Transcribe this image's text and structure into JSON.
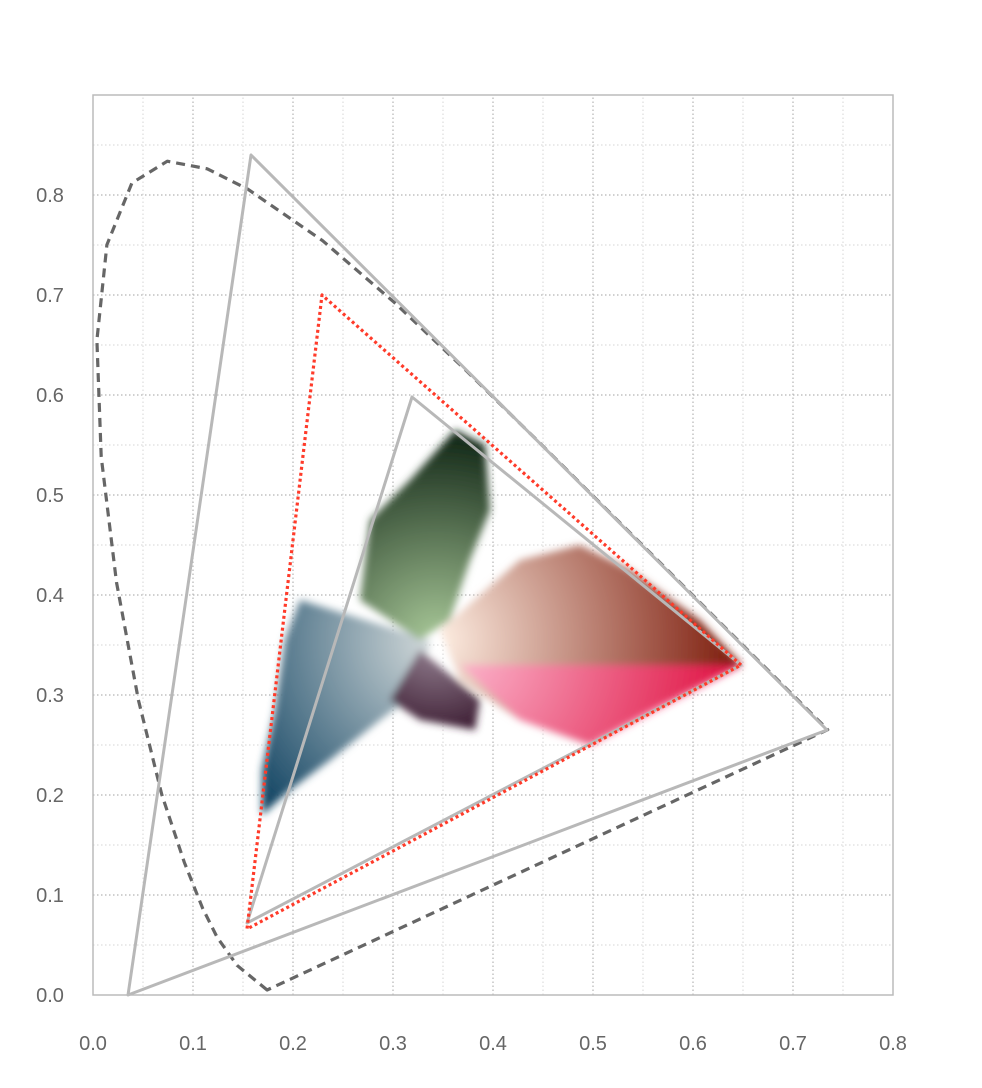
{
  "chart_data": {
    "type": "line",
    "title": "",
    "xlabel": "",
    "ylabel": "",
    "xlim": [
      0.0,
      0.8
    ],
    "ylim": [
      0.0,
      0.9
    ],
    "grid": true,
    "grid_minor_step": 0.05,
    "x_ticks": [
      "0.0",
      "0.1",
      "0.2",
      "0.3",
      "0.4",
      "0.5",
      "0.6",
      "0.7",
      "0.8"
    ],
    "y_ticks": [
      "0.0",
      "0.1",
      "0.2",
      "0.3",
      "0.4",
      "0.5",
      "0.6",
      "0.7",
      "0.8"
    ],
    "colors": {
      "axis": "#bbbbbb",
      "grid_major": "#b5b5b5",
      "grid_minor": "#dddddd",
      "tick_text": "#666666"
    },
    "series": [
      {
        "style": "dashed",
        "color": "#666666",
        "closed": true,
        "points": [
          [
            0.1741,
            0.005
          ],
          [
            0.144,
            0.0297
          ],
          [
            0.1241,
            0.0578
          ],
          [
            0.1096,
            0.0868
          ],
          [
            0.0913,
            0.1327
          ],
          [
            0.0687,
            0.2007
          ],
          [
            0.0454,
            0.295
          ],
          [
            0.0235,
            0.4127
          ],
          [
            0.0082,
            0.5384
          ],
          [
            0.0039,
            0.6548
          ],
          [
            0.0139,
            0.7502
          ],
          [
            0.0389,
            0.812
          ],
          [
            0.0743,
            0.8338
          ],
          [
            0.1142,
            0.8262
          ],
          [
            0.1547,
            0.8059
          ],
          [
            0.2296,
            0.7543
          ],
          [
            0.3016,
            0.6923
          ],
          [
            0.3731,
            0.6245
          ],
          [
            0.4441,
            0.5547
          ],
          [
            0.5125,
            0.4866
          ],
          [
            0.5752,
            0.4242
          ],
          [
            0.627,
            0.3725
          ],
          [
            0.6915,
            0.3083
          ],
          [
            0.719,
            0.2809
          ],
          [
            0.7347,
            0.2653
          ]
        ]
      },
      {
        "style": "solid",
        "color": "#b8b8b8",
        "closed": true,
        "points": [
          [
            0.734,
            0.265
          ],
          [
            0.158,
            0.84
          ],
          [
            0.035,
            0.0
          ]
        ]
      },
      {
        "style": "solid",
        "color": "#b8b8b8",
        "closed": true,
        "points": [
          [
            0.648,
            0.33
          ],
          [
            0.319,
            0.598
          ],
          [
            0.154,
            0.072
          ]
        ]
      },
      {
        "style": "dotted",
        "color": "#ff3b2a",
        "closed": true,
        "points": [
          [
            0.648,
            0.33
          ],
          [
            0.229,
            0.7
          ],
          [
            0.154,
            0.066
          ]
        ]
      }
    ],
    "point_cloud": [
      {
        "color_center": "#d6dcdc",
        "color_edge": "#0a3e5e",
        "points": [
          [
            0.337,
            0.355
          ],
          [
            0.207,
            0.395
          ],
          [
            0.192,
            0.355
          ],
          [
            0.182,
            0.285
          ],
          [
            0.169,
            0.225
          ],
          [
            0.169,
            0.18
          ],
          [
            0.197,
            0.205
          ],
          [
            0.237,
            0.235
          ],
          [
            0.287,
            0.275
          ],
          [
            0.327,
            0.305
          ]
        ]
      },
      {
        "color_center": "#a8c898",
        "color_edge": "#0f2414",
        "points": [
          [
            0.362,
            0.565
          ],
          [
            0.392,
            0.55
          ],
          [
            0.397,
            0.485
          ],
          [
            0.377,
            0.435
          ],
          [
            0.357,
            0.375
          ],
          [
            0.327,
            0.355
          ],
          [
            0.267,
            0.395
          ],
          [
            0.277,
            0.475
          ],
          [
            0.317,
            0.515
          ]
        ]
      },
      {
        "color_center": "#fff0e4",
        "color_edge": "#7a1808",
        "points": [
          [
            0.347,
            0.365
          ],
          [
            0.427,
            0.435
          ],
          [
            0.487,
            0.45
          ],
          [
            0.537,
            0.425
          ],
          [
            0.607,
            0.375
          ],
          [
            0.649,
            0.33
          ],
          [
            0.557,
            0.285
          ],
          [
            0.497,
            0.25
          ],
          [
            0.427,
            0.275
          ],
          [
            0.367,
            0.315
          ]
        ]
      },
      {
        "color_center": "#ffb8d8",
        "color_edge": "#ff0a50",
        "points": [
          [
            0.367,
            0.33
          ],
          [
            0.649,
            0.33
          ],
          [
            0.497,
            0.25
          ],
          [
            0.427,
            0.275
          ]
        ]
      },
      {
        "color_center": "#9a8898",
        "color_edge": "#3a1a30",
        "points": [
          [
            0.327,
            0.345
          ],
          [
            0.387,
            0.295
          ],
          [
            0.382,
            0.265
          ],
          [
            0.327,
            0.275
          ],
          [
            0.297,
            0.295
          ]
        ]
      }
    ]
  }
}
